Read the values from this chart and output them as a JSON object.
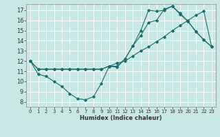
{
  "title": "",
  "xlabel": "Humidex (Indice chaleur)",
  "bg_color": "#c8e8e5",
  "line_color": "#1a6b6b",
  "grid_color": "#ffffff",
  "xlim": [
    -0.5,
    23.5
  ],
  "ylim": [
    7.5,
    17.6
  ],
  "xticks": [
    0,
    1,
    2,
    3,
    4,
    5,
    6,
    7,
    8,
    9,
    10,
    11,
    12,
    13,
    14,
    15,
    16,
    17,
    18,
    19,
    20,
    21,
    22,
    23
  ],
  "yticks": [
    8,
    9,
    10,
    11,
    12,
    13,
    14,
    15,
    16,
    17
  ],
  "line1_x": [
    0,
    1,
    2,
    3,
    4,
    5,
    6,
    7,
    8,
    9,
    10,
    11,
    12,
    13,
    14,
    15,
    16,
    17,
    18,
    19,
    20,
    21,
    22,
    23
  ],
  "line1_y": [
    12.0,
    10.7,
    10.5,
    10.0,
    9.5,
    8.8,
    8.3,
    8.2,
    8.5,
    9.8,
    11.5,
    11.4,
    12.2,
    13.5,
    14.5,
    15.8,
    16.0,
    17.1,
    17.4,
    16.7,
    15.9,
    14.9,
    14.1,
    13.4
  ],
  "line2_x": [
    0,
    1,
    2,
    3,
    4,
    5,
    6,
    7,
    8,
    9,
    10,
    11,
    12,
    13,
    14,
    15,
    16,
    17,
    18,
    19,
    20,
    21,
    22,
    23
  ],
  "line2_y": [
    12.0,
    11.2,
    11.2,
    11.2,
    11.2,
    11.2,
    11.2,
    11.2,
    11.2,
    11.2,
    11.5,
    11.5,
    12.2,
    13.5,
    15.0,
    17.0,
    16.9,
    17.0,
    17.4,
    16.6,
    15.9,
    14.9,
    14.1,
    13.4
  ],
  "line3_x": [
    0,
    1,
    2,
    3,
    4,
    5,
    6,
    7,
    8,
    9,
    10,
    11,
    12,
    13,
    14,
    15,
    16,
    17,
    18,
    19,
    20,
    21,
    22,
    23
  ],
  "line3_y": [
    12.0,
    11.2,
    11.2,
    11.2,
    11.2,
    11.2,
    11.2,
    11.2,
    11.2,
    11.2,
    11.5,
    11.8,
    12.0,
    12.5,
    13.0,
    13.4,
    13.9,
    14.4,
    15.0,
    15.5,
    16.0,
    16.5,
    16.9,
    13.4
  ]
}
